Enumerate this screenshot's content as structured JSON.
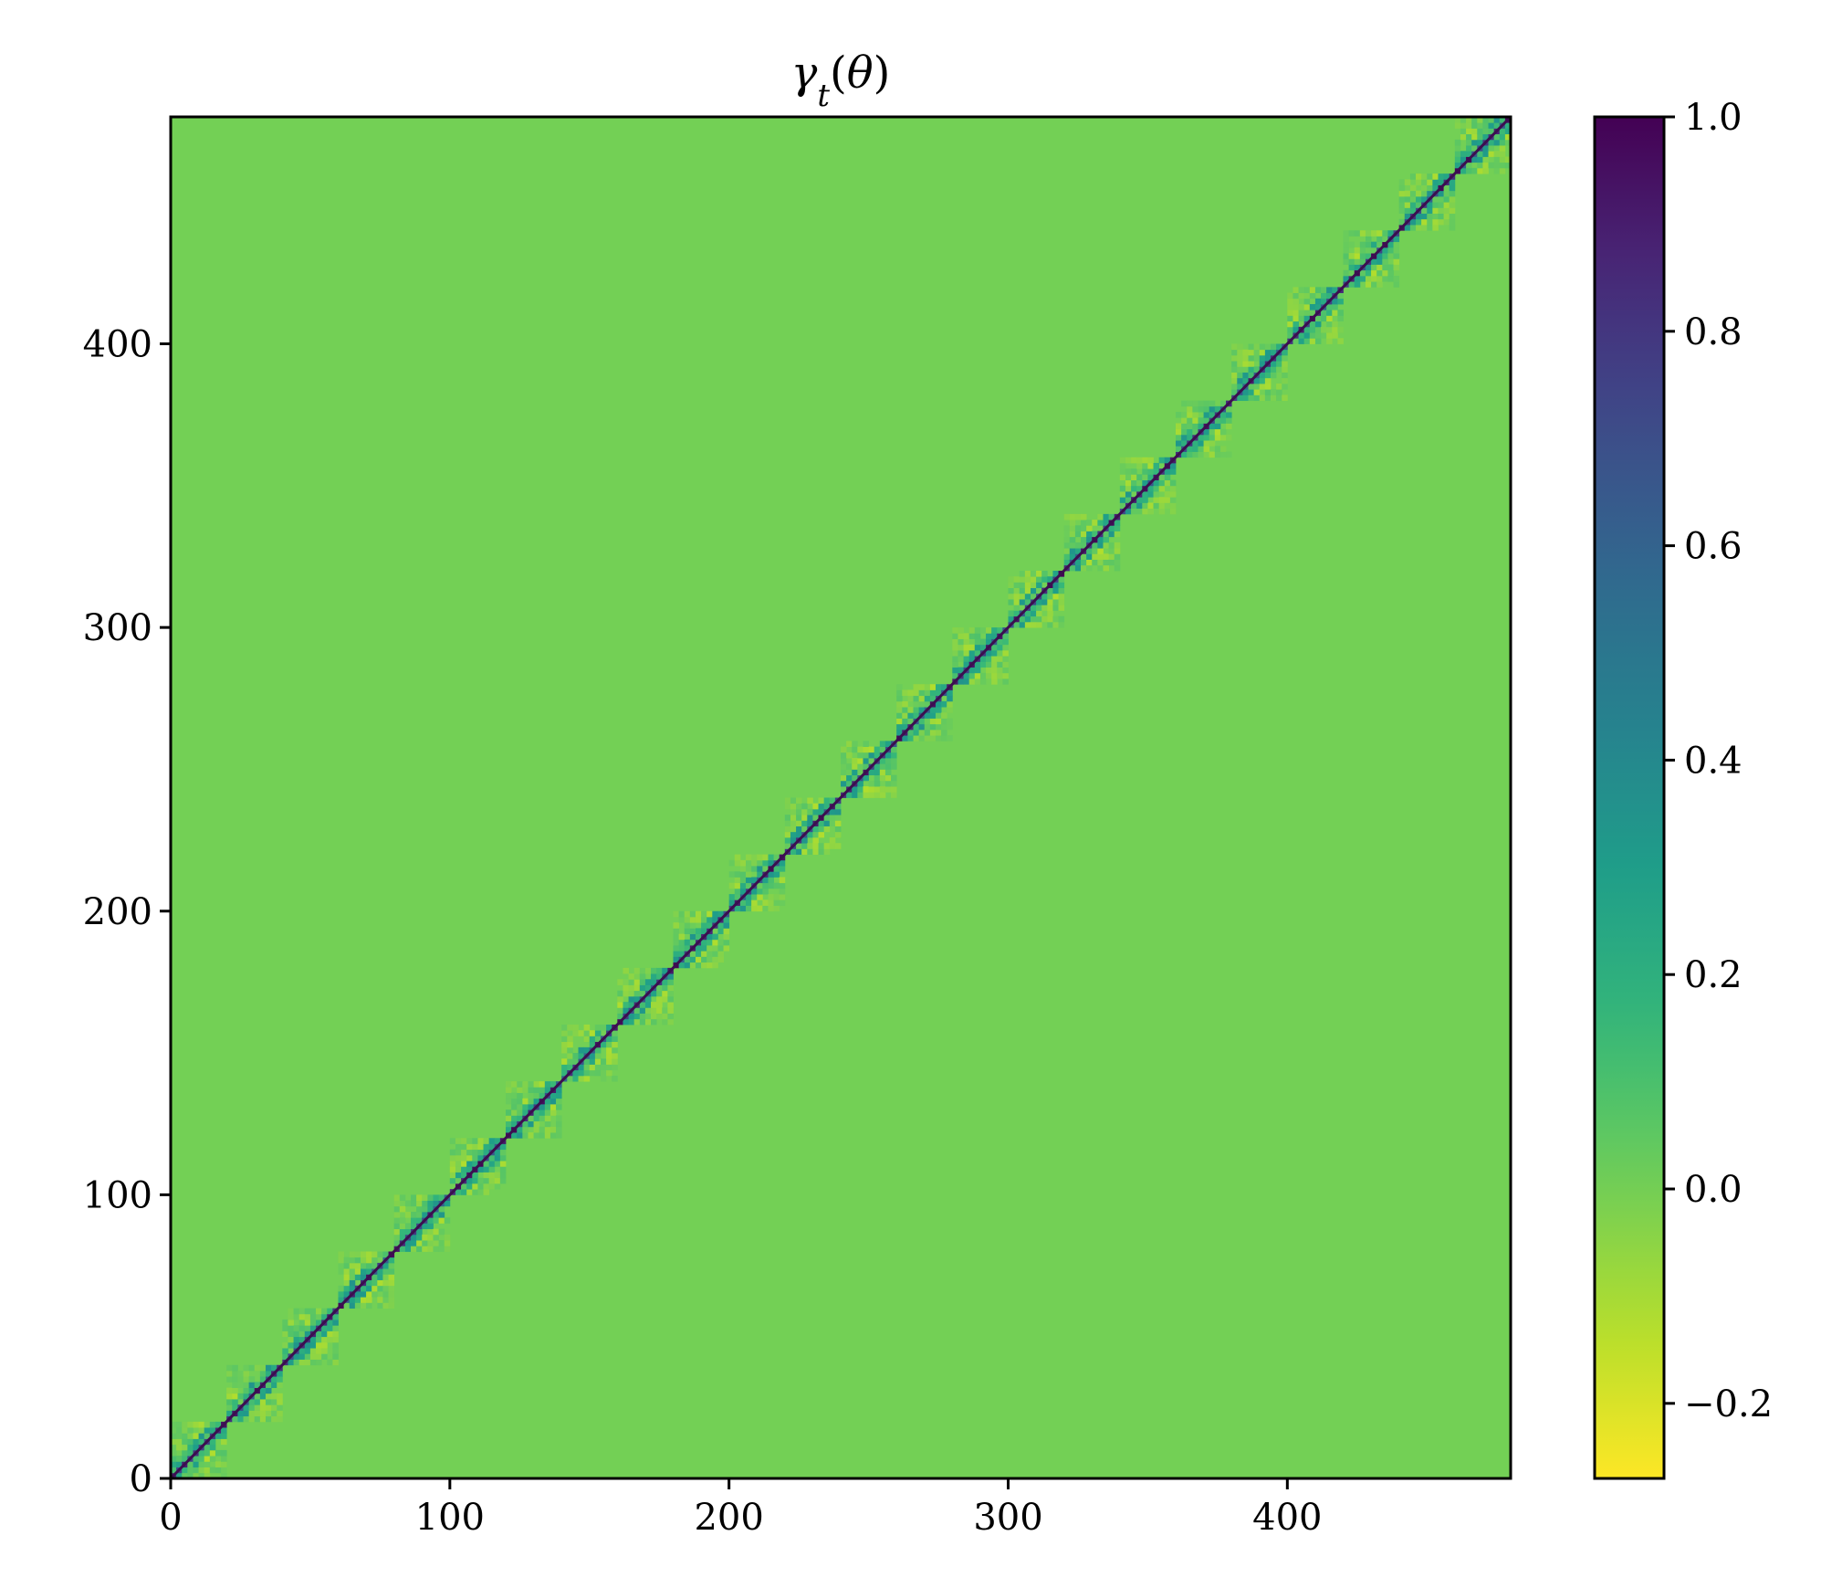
{
  "chart_data": {
    "type": "heatmap",
    "title": "γt(θ)",
    "title_parts": {
      "main": "γ",
      "sub": "t",
      "paren_open": "(",
      "arg": "θ",
      "paren_close": ")"
    },
    "matrix_size": 480,
    "block_size": 20,
    "num_blocks": 24,
    "diagonal_value": 1.0,
    "background_value": 0.0,
    "xlim": [
      0,
      480
    ],
    "ylim": [
      0,
      480
    ],
    "x_ticks": [
      0,
      100,
      200,
      300,
      400
    ],
    "y_ticks": [
      0,
      100,
      200,
      300,
      400
    ],
    "x_tick_labels": [
      "0",
      "100",
      "200",
      "300",
      "400"
    ],
    "y_tick_labels": [
      "0",
      "100",
      "200",
      "300",
      "400"
    ],
    "colorbar": {
      "colormap": "viridis_r",
      "range": [
        -0.27,
        1.0
      ],
      "ticks": [
        -0.2,
        0.0,
        0.2,
        0.4,
        0.6,
        0.8,
        1.0
      ],
      "tick_labels": [
        "−0.2",
        "0.0",
        "0.2",
        "0.4",
        "0.6",
        "0.8",
        "1.0"
      ]
    },
    "grid": false,
    "legend": "none"
  }
}
